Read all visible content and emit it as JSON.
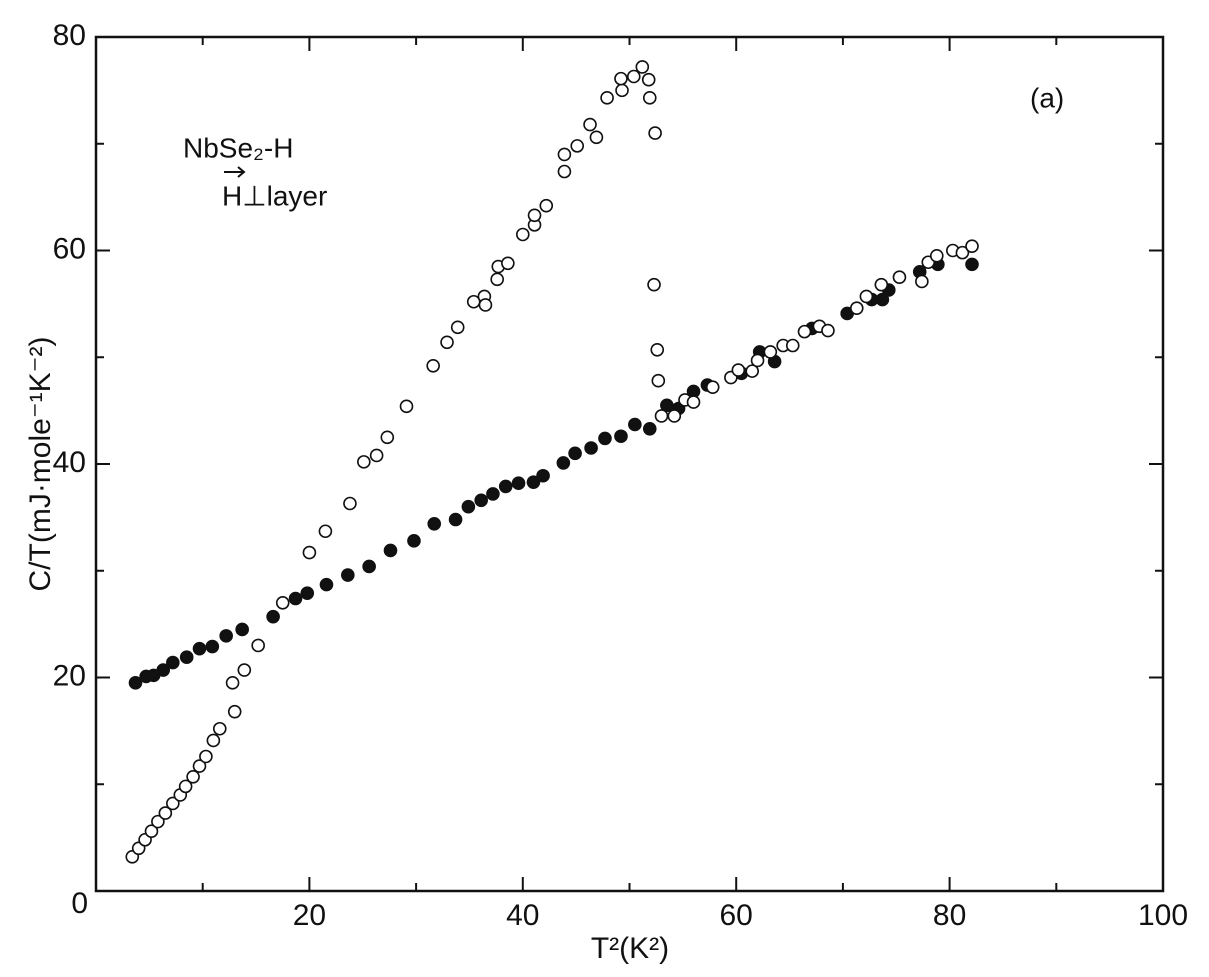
{
  "chart_data": {
    "type": "scatter",
    "xlabel": "T²(K²)",
    "ylabel": "C/T(mJ·mole⁻¹K⁻²)",
    "annotations": [
      "NbSe₂-H",
      "H⊥layer",
      "(a)"
    ],
    "xlim": [
      0,
      100
    ],
    "ylim": [
      0,
      80
    ],
    "xticks": [
      20,
      40,
      60,
      80,
      100
    ],
    "yticks": [
      0,
      20,
      40,
      60,
      80
    ],
    "xminorticks": [
      10,
      30,
      50,
      70,
      90
    ],
    "yminorticks": [
      10,
      30,
      50,
      70
    ],
    "series": [
      {
        "marker": "filled",
        "color": "#111111",
        "x": [
          3.7,
          4.7,
          5.4,
          6.3,
          7.2,
          8.5,
          9.7,
          10.9,
          12.2,
          13.7,
          16.6,
          18.7,
          19.8,
          21.6,
          23.6,
          25.6,
          27.6,
          29.8,
          31.7,
          33.7,
          34.9,
          36.1,
          37.2,
          38.4,
          39.6,
          41.0,
          41.9,
          43.8,
          44.9,
          46.4,
          47.7,
          49.2,
          50.5,
          51.9,
          53.5,
          54.6,
          56.0,
          57.3,
          60.5,
          62.2,
          63.6,
          67.1,
          70.4,
          72.7,
          73.7,
          74.3,
          77.2,
          78.9,
          82.1
        ],
        "values": [
          19.5,
          20.1,
          20.2,
          20.7,
          21.4,
          21.9,
          22.7,
          22.9,
          23.9,
          24.5,
          25.7,
          27.4,
          27.9,
          28.7,
          29.6,
          30.4,
          31.9,
          32.8,
          34.4,
          34.8,
          36.0,
          36.6,
          37.2,
          37.9,
          38.2,
          38.3,
          38.9,
          40.1,
          41.0,
          41.5,
          42.4,
          42.6,
          43.7,
          43.3,
          45.5,
          45.2,
          46.8,
          47.4,
          48.5,
          50.5,
          49.6,
          52.7,
          54.1,
          55.4,
          55.4,
          56.3,
          58.0,
          58.7,
          58.7
        ]
      },
      {
        "marker": "open",
        "color": "#111111",
        "x": [
          3.4,
          4.0,
          4.6,
          5.2,
          5.8,
          6.5,
          7.2,
          7.9,
          8.4,
          9.1,
          9.7,
          10.3,
          11.0,
          11.6,
          13.0,
          12.8,
          13.9,
          15.2,
          17.5,
          20.0,
          21.5,
          23.8,
          25.1,
          26.3,
          27.3,
          29.1,
          31.6,
          32.9,
          33.9,
          35.4,
          36.4,
          36.5,
          37.6,
          37.7,
          38.6,
          40.0,
          41.1,
          41.1,
          42.2,
          43.9,
          43.9,
          45.1,
          46.3,
          46.9,
          47.9,
          49.3,
          49.2,
          50.4,
          51.2,
          51.8,
          51.9,
          52.4,
          52.3,
          52.6,
          52.7,
          53.0,
          54.2,
          55.2,
          56.0,
          57.8,
          59.5,
          60.2,
          61.5,
          62.0,
          63.2,
          64.4,
          65.3,
          66.4,
          67.8,
          68.6,
          71.3,
          72.2,
          73.6,
          75.3,
          77.4,
          78.0,
          78.8,
          80.3,
          81.2,
          82.1
        ],
        "values": [
          3.2,
          4.0,
          4.8,
          5.6,
          6.5,
          7.3,
          8.2,
          9.0,
          9.8,
          10.7,
          11.7,
          12.6,
          14.1,
          15.2,
          16.8,
          19.5,
          20.7,
          23.0,
          27.0,
          31.7,
          33.7,
          36.3,
          40.2,
          40.8,
          42.5,
          45.4,
          49.2,
          51.4,
          52.8,
          55.2,
          55.7,
          54.9,
          57.3,
          58.5,
          58.8,
          61.5,
          62.4,
          63.3,
          64.2,
          67.4,
          69.0,
          69.8,
          71.8,
          70.6,
          74.3,
          75.0,
          76.1,
          76.3,
          77.2,
          76.0,
          74.3,
          71.0,
          56.8,
          50.7,
          47.8,
          44.5,
          44.5,
          46.0,
          45.8,
          47.2,
          48.1,
          48.8,
          48.7,
          49.7,
          50.5,
          51.1,
          51.1,
          52.4,
          52.9,
          52.5,
          54.6,
          55.7,
          56.8,
          57.5,
          57.1,
          58.9,
          59.5,
          60.0,
          59.8,
          60.4
        ]
      }
    ]
  }
}
